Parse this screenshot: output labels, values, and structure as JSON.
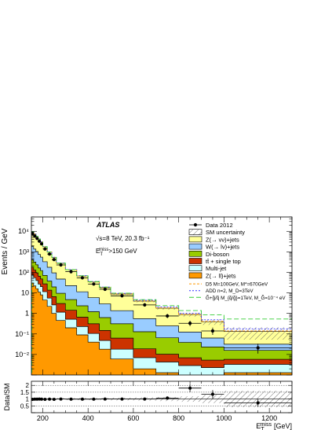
{
  "chart_data": [
    {
      "type": "stacked-histogram",
      "ylabel": "Events / GeV",
      "yscale": "log",
      "ylim": [
        0.001,
        50000
      ],
      "xlim": [
        150,
        1300
      ],
      "ytick_labels": [
        "10⁻²",
        "10⁻¹",
        "1",
        "10",
        "10²",
        "10³",
        "10⁴"
      ],
      "ytick_values": [
        0.01,
        0.1,
        1,
        10,
        100,
        1000,
        10000
      ],
      "annotations": {
        "experiment": "ATLAS",
        "energy_lumi": "√s=8 TeV, 20.3 fb⁻¹",
        "selection": "E_T^miss>150 GeV"
      },
      "bin_edges": [
        150,
        160,
        170,
        180,
        190,
        200,
        220,
        240,
        260,
        300,
        350,
        400,
        450,
        500,
        600,
        700,
        800,
        900,
        1000,
        1300
      ],
      "colors": {
        "z_ll": "#ff9900",
        "multijet": "#ccffff",
        "ttbar_top": "#cc3300",
        "diboson": "#99cc00",
        "w_lv": "#99ccff",
        "z_vv": "#ffff99"
      },
      "series": [
        {
          "name": "Z(→ ll)+jets",
          "key": "z_ll",
          "values": [
            30,
            22,
            16,
            11,
            8,
            4.5,
            2.2,
            1.0,
            0.45,
            0.2,
            0.09,
            0.04,
            0.018,
            0.006,
            0.002,
            0.0013,
            0.0009,
            0.0008,
            0.0013
          ]
        },
        {
          "name": "Multi-jet",
          "key": "multijet",
          "values": [
            45,
            33,
            24,
            16,
            12,
            7,
            3.4,
            1.6,
            0.7,
            0.32,
            0.14,
            0.065,
            0.03,
            0.012,
            0.005,
            0.003,
            0.002,
            0.0015,
            0.002
          ]
        },
        {
          "name": "tt̄ + single top",
          "key": "ttbar_top",
          "values": [
            100,
            75,
            55,
            38,
            28,
            16,
            8,
            4,
            1.9,
            0.9,
            0.43,
            0.21,
            0.1,
            0.045,
            0.012,
            0.006,
            0.004,
            0.003,
            0.0025
          ]
        },
        {
          "name": "Di-boson",
          "key": "diboson",
          "values": [
            250,
            190,
            140,
            100,
            75,
            44,
            24,
            13,
            6.5,
            3.3,
            1.7,
            0.9,
            0.48,
            0.25,
            0.11,
            0.055,
            0.032,
            0.018,
            0.01
          ]
        },
        {
          "name": "W(→ lν)+jets",
          "key": "w_lv",
          "values": [
            1400,
            1050,
            800,
            580,
            430,
            260,
            140,
            75,
            38,
            18,
            9,
            4.6,
            2.3,
            1.05,
            0.43,
            0.18,
            0.085,
            0.04,
            0.016
          ]
        },
        {
          "name": "Z(→ νν)+jets",
          "key": "z_vv",
          "values": [
            7500,
            6000,
            4600,
            3400,
            2500,
            1450,
            800,
            440,
            230,
            110,
            55,
            28,
            15,
            7.4,
            3.4,
            1.55,
            0.75,
            0.33,
            0.1
          ]
        }
      ],
      "uncertainty": {
        "name": "SM uncertainty",
        "rel": [
          0.05,
          0.05,
          0.05,
          0.05,
          0.05,
          0.05,
          0.06,
          0.06,
          0.07,
          0.07,
          0.08,
          0.08,
          0.09,
          0.1,
          0.12,
          0.15,
          0.2,
          0.3,
          0.6
        ]
      },
      "data": {
        "name": "Data 2012",
        "x": [
          155,
          165,
          175,
          185,
          195,
          210,
          230,
          250,
          280,
          325,
          375,
          425,
          475,
          550,
          650,
          750,
          850,
          950,
          1150
        ],
        "y": [
          7600,
          5900,
          4500,
          3300,
          2450,
          1380,
          780,
          420,
          230,
          108,
          54,
          27,
          15,
          7.2,
          2.6,
          0.75,
          0.33,
          0.14,
          0.021
        ],
        "yerr_rel": [
          0.002,
          0.003,
          0.003,
          0.004,
          0.004,
          0.004,
          0.005,
          0.007,
          0.007,
          0.009,
          0.012,
          0.017,
          0.023,
          0.024,
          0.06,
          0.11,
          0.17,
          0.27,
          0.4
        ]
      },
      "signals": [
        {
          "name": "D5 M=100GeV, M*=670GeV",
          "color": "#ff9900",
          "dash": "3,2",
          "values": [
            15,
            13,
            11,
            9.5,
            8.2,
            6.5,
            5,
            3.8,
            2.7,
            1.7,
            1.05,
            0.7,
            0.45,
            0.25,
            0.12,
            0.065,
            0.036,
            0.02,
            0.009
          ]
        },
        {
          "name": "ADD n=2, M_D=3TeV",
          "color": "#3333ff",
          "dash": "2,2",
          "values": [
            35,
            30,
            26,
            22,
            19,
            15,
            11,
            8.5,
            6,
            4,
            2.6,
            1.8,
            1.2,
            0.75,
            0.42,
            0.25,
            0.15,
            0.095,
            0.045
          ]
        },
        {
          "name": "G̃+g̃/q̃ M_{q̃/g̃}=1TeV, M_G̃=10⁻⁴ eV",
          "color": "#33cc33",
          "dash": "6,3",
          "values": [
            10,
            9.2,
            8.5,
            7.8,
            7.2,
            6.2,
            5.2,
            4.4,
            3.5,
            2.6,
            1.95,
            1.5,
            1.2,
            0.95,
            0.72,
            0.6,
            0.5,
            0.45,
            0.4
          ]
        }
      ],
      "legend_placement": "top-right"
    },
    {
      "type": "ratio",
      "ylabel": "Data/SM",
      "xlabel": "E_T^miss [GeV]",
      "ylim": [
        0,
        2.3
      ],
      "xlim": [
        150,
        1300
      ],
      "ytick_labels": [
        "0",
        "0.5",
        "1",
        "1.5",
        "2"
      ],
      "ytick_values": [
        0,
        0.5,
        1,
        1.5,
        2
      ],
      "xtick_labels": [
        "200",
        "400",
        "600",
        "800",
        "1000",
        "1200"
      ],
      "xtick_values": [
        200,
        400,
        600,
        800,
        1000,
        1200
      ],
      "x": [
        155,
        165,
        175,
        185,
        195,
        210,
        230,
        250,
        280,
        325,
        375,
        425,
        475,
        550,
        650,
        750,
        850,
        950,
        1150
      ],
      "values": [
        0.98,
        0.99,
        0.99,
        1.0,
        0.99,
        0.98,
        0.99,
        0.98,
        1.0,
        0.99,
        0.99,
        0.99,
        1.0,
        1.0,
        1.0,
        1.07,
        1.8,
        1.35,
        0.72
      ],
      "errors": [
        0.01,
        0.01,
        0.01,
        0.01,
        0.01,
        0.01,
        0.01,
        0.01,
        0.02,
        0.02,
        0.03,
        0.03,
        0.04,
        0.05,
        0.07,
        0.12,
        0.3,
        0.3,
        0.3
      ],
      "uncertainty_label": "SM uncertainty"
    }
  ]
}
